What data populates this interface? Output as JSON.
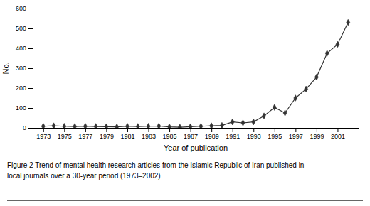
{
  "chart_data": {
    "type": "line",
    "x": [
      1973,
      1974,
      1975,
      1976,
      1977,
      1978,
      1979,
      1980,
      1981,
      1982,
      1983,
      1984,
      1985,
      1986,
      1987,
      1988,
      1989,
      1990,
      1991,
      1992,
      1993,
      1994,
      1995,
      1996,
      1997,
      1998,
      1999,
      2000,
      2001,
      2002
    ],
    "values": [
      8,
      10,
      8,
      7,
      8,
      7,
      6,
      5,
      8,
      7,
      8,
      9,
      5,
      3,
      6,
      8,
      10,
      12,
      30,
      25,
      30,
      60,
      103,
      75,
      150,
      195,
      255,
      375,
      420,
      530
    ],
    "xlabel": "Year of publication",
    "ylabel": "No.",
    "xlim": [
      1972,
      2003
    ],
    "xticks": [
      1973,
      1975,
      1977,
      1979,
      1981,
      1983,
      1985,
      1987,
      1989,
      1991,
      1993,
      1995,
      1997,
      1999,
      2001
    ],
    "ylim": [
      0,
      600
    ],
    "yticks": [
      0,
      100,
      200,
      300,
      400,
      500,
      600
    ],
    "color": "#333333",
    "marker": "diamond",
    "annotations": [
      "Figure 2 Trend of mental health research articles from the Islamic Republic of Iran published in",
      "local journals over a 30-year period (1973–2002)"
    ]
  }
}
